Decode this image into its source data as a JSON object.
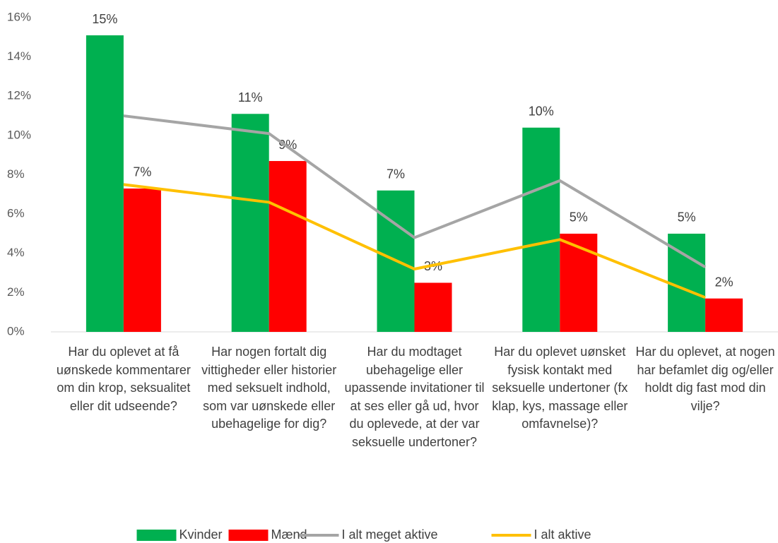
{
  "chart_data": {
    "type": "bar",
    "categories": [
      "Har du oplevet at få uønskede kommentarer om din krop, seksualitet eller dit udseende?",
      "Har nogen fortalt dig vittigheder eller historier med seksuelt indhold, som var uønskede eller ubehagelige for dig?",
      "Har du modtaget ubehagelige eller upassende invitationer til at ses eller gå ud, hvor du oplevede, at der var seksuelle undertoner?",
      "Har du oplevet uønsket fysisk kontakt med seksuelle undertoner (fx klap, kys, massage eller omfavnelse)?",
      "Har du oplevet, at nogen har befamlet dig og/eller holdt dig fast mod din vilje?"
    ],
    "series": [
      {
        "name": "Kvinder",
        "type": "bar",
        "color": "#00b050",
        "values": [
          15.1,
          11.1,
          7.2,
          10.4,
          5.0
        ],
        "value_labels": [
          "15%",
          "11%",
          "7%",
          "10%",
          "5%"
        ]
      },
      {
        "name": "Mænd",
        "type": "bar",
        "color": "#ff0000",
        "values": [
          7.3,
          8.7,
          2.5,
          5.0,
          1.7
        ],
        "value_labels": [
          "7%",
          "9%",
          "3%",
          "5%",
          "2%"
        ]
      },
      {
        "name": "I alt meget aktive",
        "type": "line",
        "color": "#a5a5a5",
        "values": [
          11.0,
          10.1,
          4.8,
          7.7,
          3.3
        ]
      },
      {
        "name": "I alt aktive",
        "type": "line",
        "color": "#ffc000",
        "values": [
          7.5,
          6.6,
          3.2,
          4.7,
          1.75
        ]
      }
    ],
    "ylim": [
      0,
      16
    ],
    "yticks": [
      {
        "value": 0,
        "label": "0%"
      },
      {
        "value": 2,
        "label": "2%"
      },
      {
        "value": 4,
        "label": "4%"
      },
      {
        "value": 6,
        "label": "6%"
      },
      {
        "value": 8,
        "label": "8%"
      },
      {
        "value": 10,
        "label": "10%"
      },
      {
        "value": 12,
        "label": "12%"
      },
      {
        "value": 14,
        "label": "14%"
      },
      {
        "value": 16,
        "label": "16%"
      }
    ],
    "grid": false,
    "legend": "bottom"
  }
}
